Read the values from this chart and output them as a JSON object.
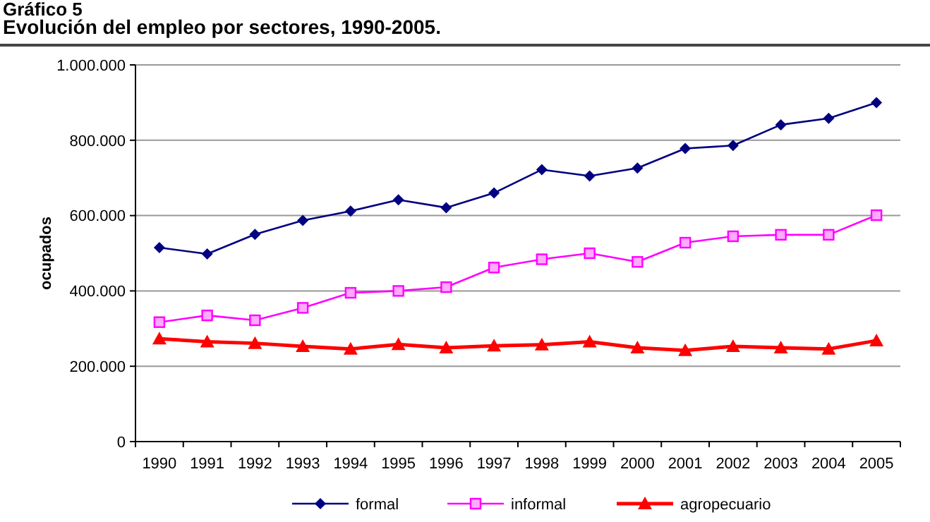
{
  "chart_data": {
    "type": "line",
    "title": "Gráfico 5",
    "subtitle": "Evolución del empleo por sectores, 1990-2005.",
    "ylabel": "ocupados",
    "categories": [
      "1990",
      "1991",
      "1992",
      "1993",
      "1994",
      "1995",
      "1996",
      "1997",
      "1998",
      "1999",
      "2000",
      "2001",
      "2002",
      "2003",
      "2004",
      "2005"
    ],
    "series": [
      {
        "name": "formal",
        "color": "#000080",
        "marker": "diamond",
        "values": [
          515000,
          498000,
          550000,
          587000,
          612000,
          642000,
          621000,
          660000,
          722000,
          705000,
          726000,
          778000,
          786000,
          841000,
          858000,
          900000
        ]
      },
      {
        "name": "informal",
        "color": "#ff00ff",
        "marker": "square",
        "values": [
          317000,
          335000,
          322000,
          355000,
          395000,
          400000,
          410000,
          462000,
          484000,
          500000,
          477000,
          528000,
          545000,
          549000,
          549000,
          601000
        ]
      },
      {
        "name": "agropecuario",
        "color": "#ff0000",
        "marker": "triangle",
        "values": [
          273000,
          265000,
          261000,
          253000,
          246000,
          258000,
          249000,
          254000,
          257000,
          265000,
          249000,
          242000,
          253000,
          249000,
          246000,
          268000
        ]
      }
    ],
    "ylim": [
      0,
      1000000
    ],
    "yticks": [
      {
        "value": 0,
        "label": "0"
      },
      {
        "value": 200000,
        "label": "200.000"
      },
      {
        "value": 400000,
        "label": "400.000"
      },
      {
        "value": 600000,
        "label": "600.000"
      },
      {
        "value": 800000,
        "label": "800.000"
      },
      {
        "value": 1000000,
        "label": "1.000.000"
      }
    ],
    "grid": "y",
    "legend": "bottom"
  }
}
